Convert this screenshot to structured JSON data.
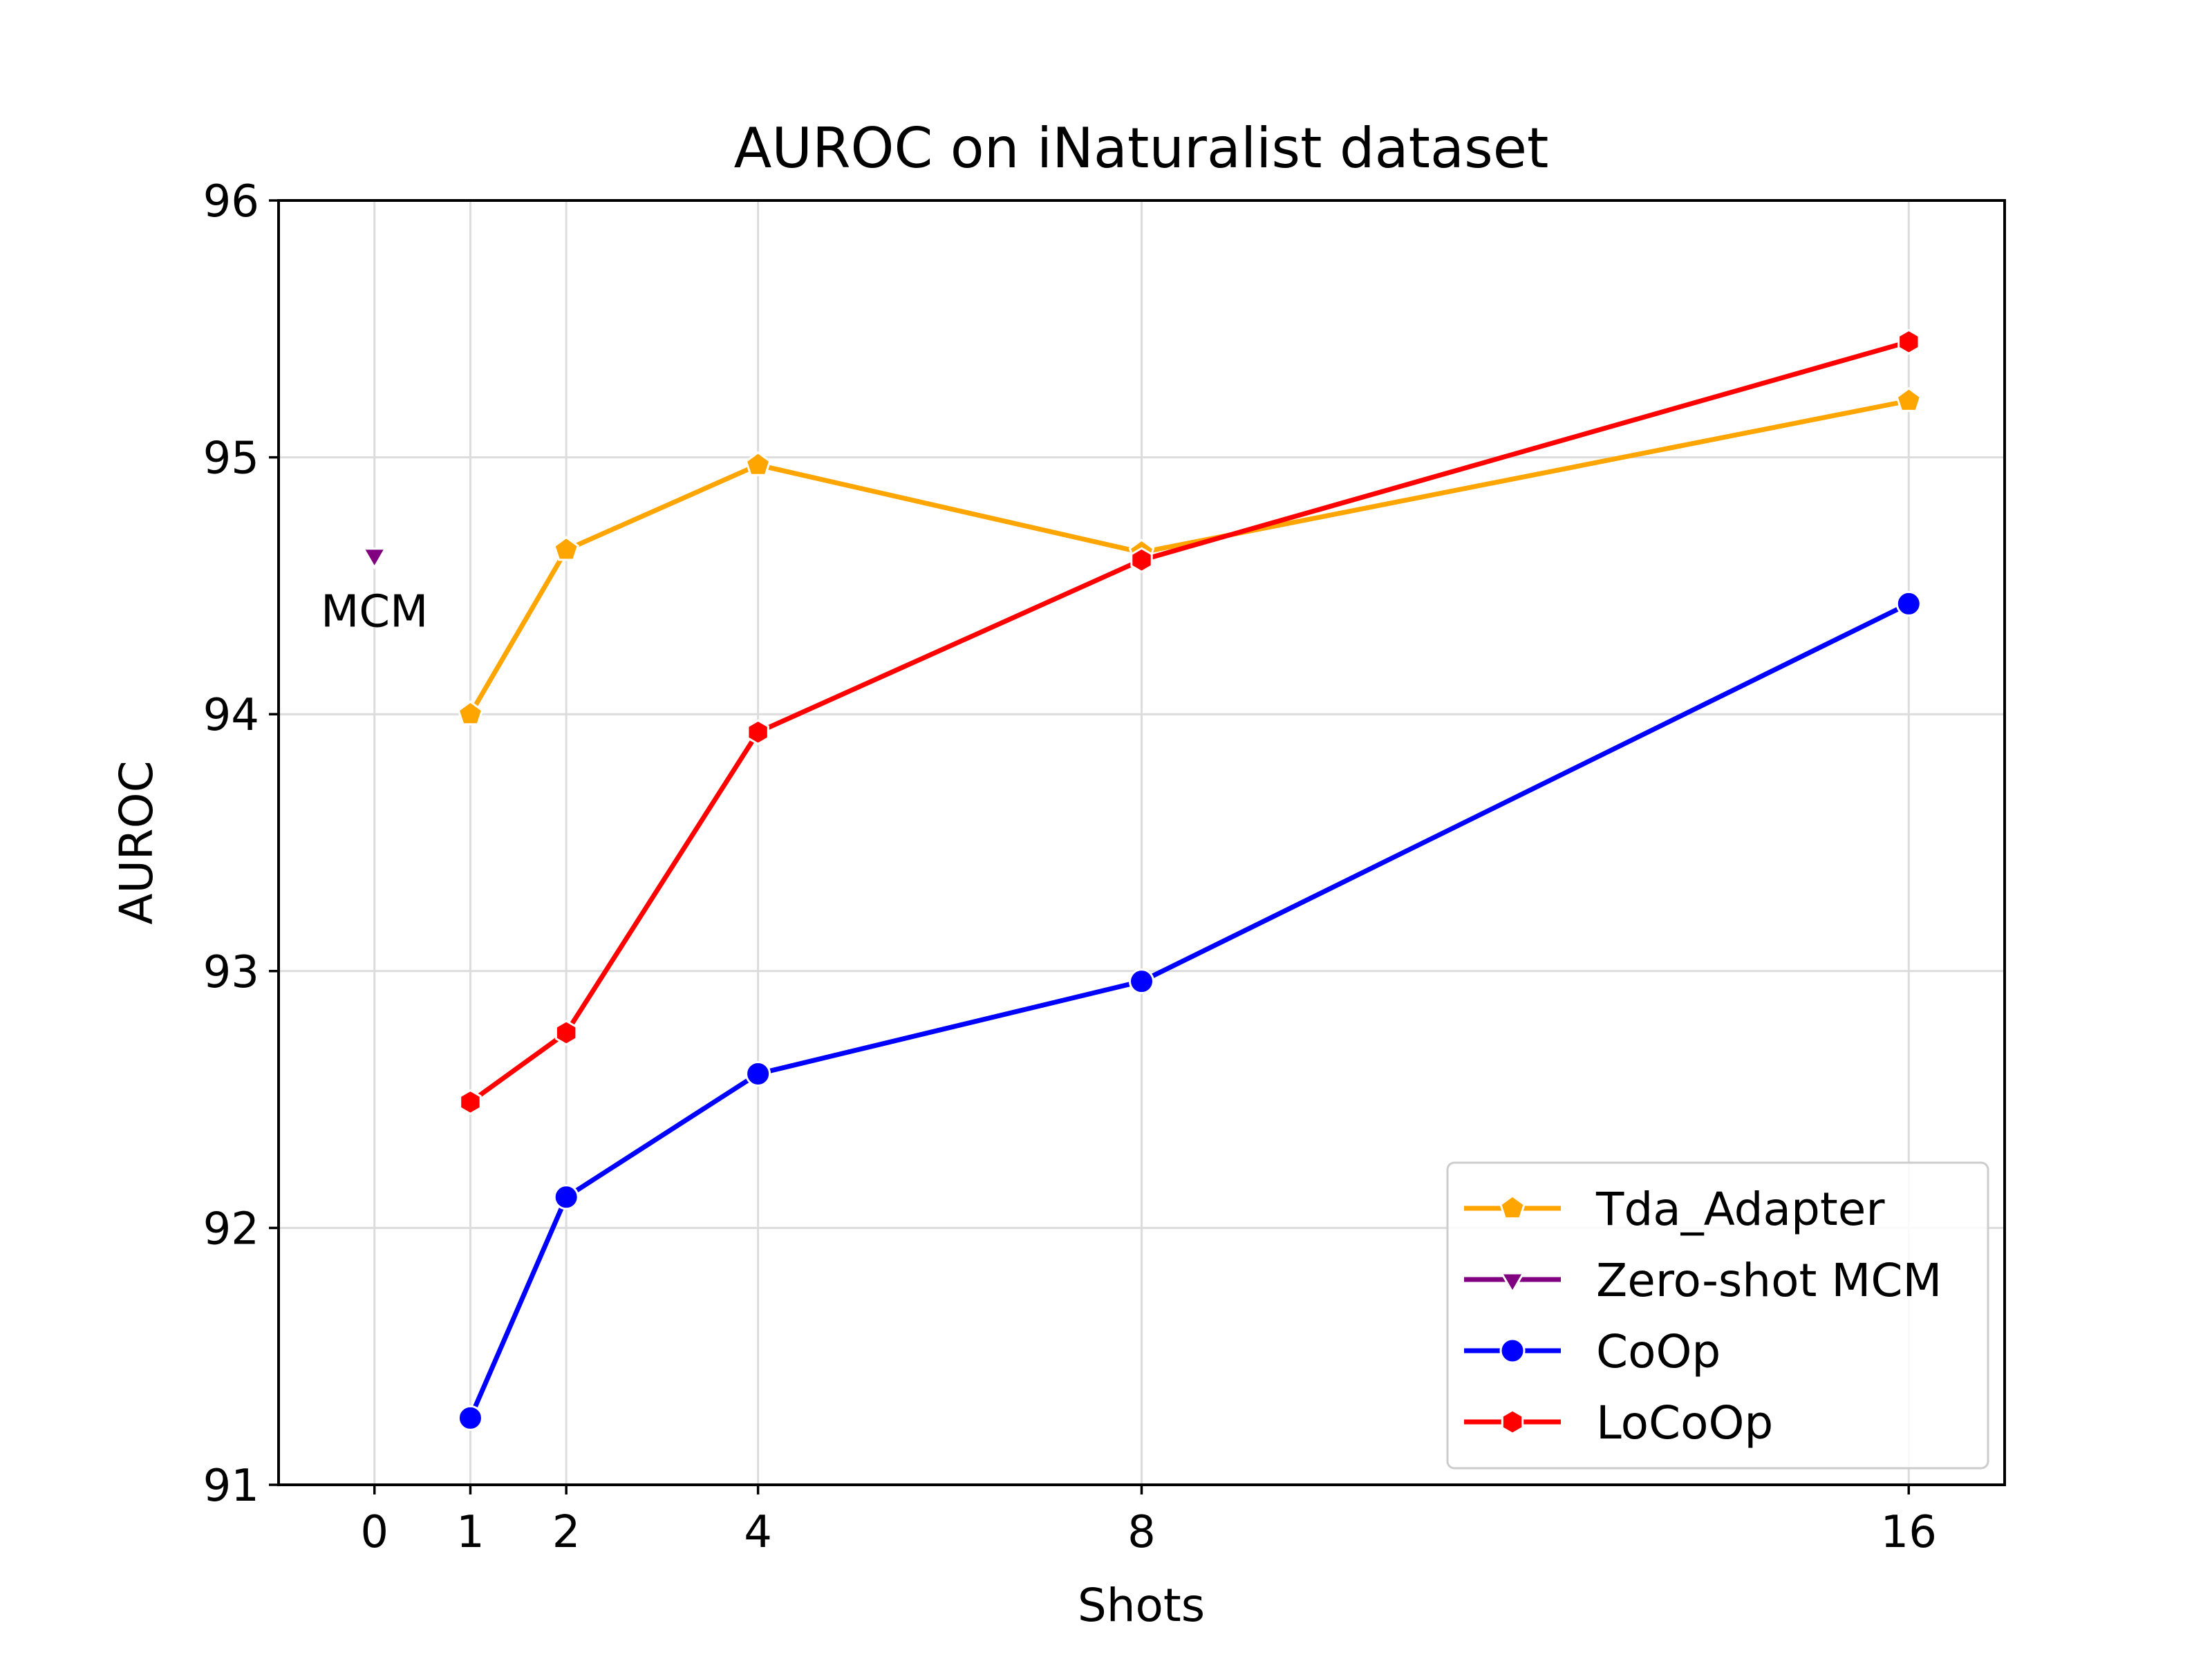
{
  "chart_data": {
    "type": "line",
    "title": "AUROC on iNaturalist dataset",
    "xlabel": "Shots",
    "ylabel": "AUROC",
    "xlim": [
      -1,
      17
    ],
    "ylim": [
      91,
      96
    ],
    "xticks": [
      0,
      1,
      2,
      4,
      8,
      16
    ],
    "yticks": [
      91,
      92,
      93,
      94,
      95,
      96
    ],
    "grid": true,
    "legend_position": "lower-right",
    "series": [
      {
        "name": "Tda_Adapter",
        "color": "#FFA500",
        "marker": "pentagon",
        "x": [
          1,
          2,
          4,
          8,
          16
        ],
        "y": [
          94.0,
          94.64,
          94.97,
          94.63,
          95.22
        ]
      },
      {
        "name": "Zero-shot MCM",
        "color": "#800080",
        "marker": "triangle-down",
        "x": [
          0
        ],
        "y": [
          94.62
        ]
      },
      {
        "name": "CoOp",
        "color": "#0000FF",
        "marker": "circle",
        "x": [
          1,
          2,
          4,
          8,
          16
        ],
        "y": [
          91.26,
          92.12,
          92.6,
          92.96,
          94.43
        ]
      },
      {
        "name": "LoCoOp",
        "color": "#FF0000",
        "marker": "hexagon",
        "x": [
          1,
          2,
          4,
          8,
          16
        ],
        "y": [
          92.49,
          92.76,
          93.93,
          94.6,
          95.45
        ]
      }
    ],
    "annotations": [
      {
        "text": "MCM",
        "x": 0,
        "y": 94.4
      }
    ]
  }
}
